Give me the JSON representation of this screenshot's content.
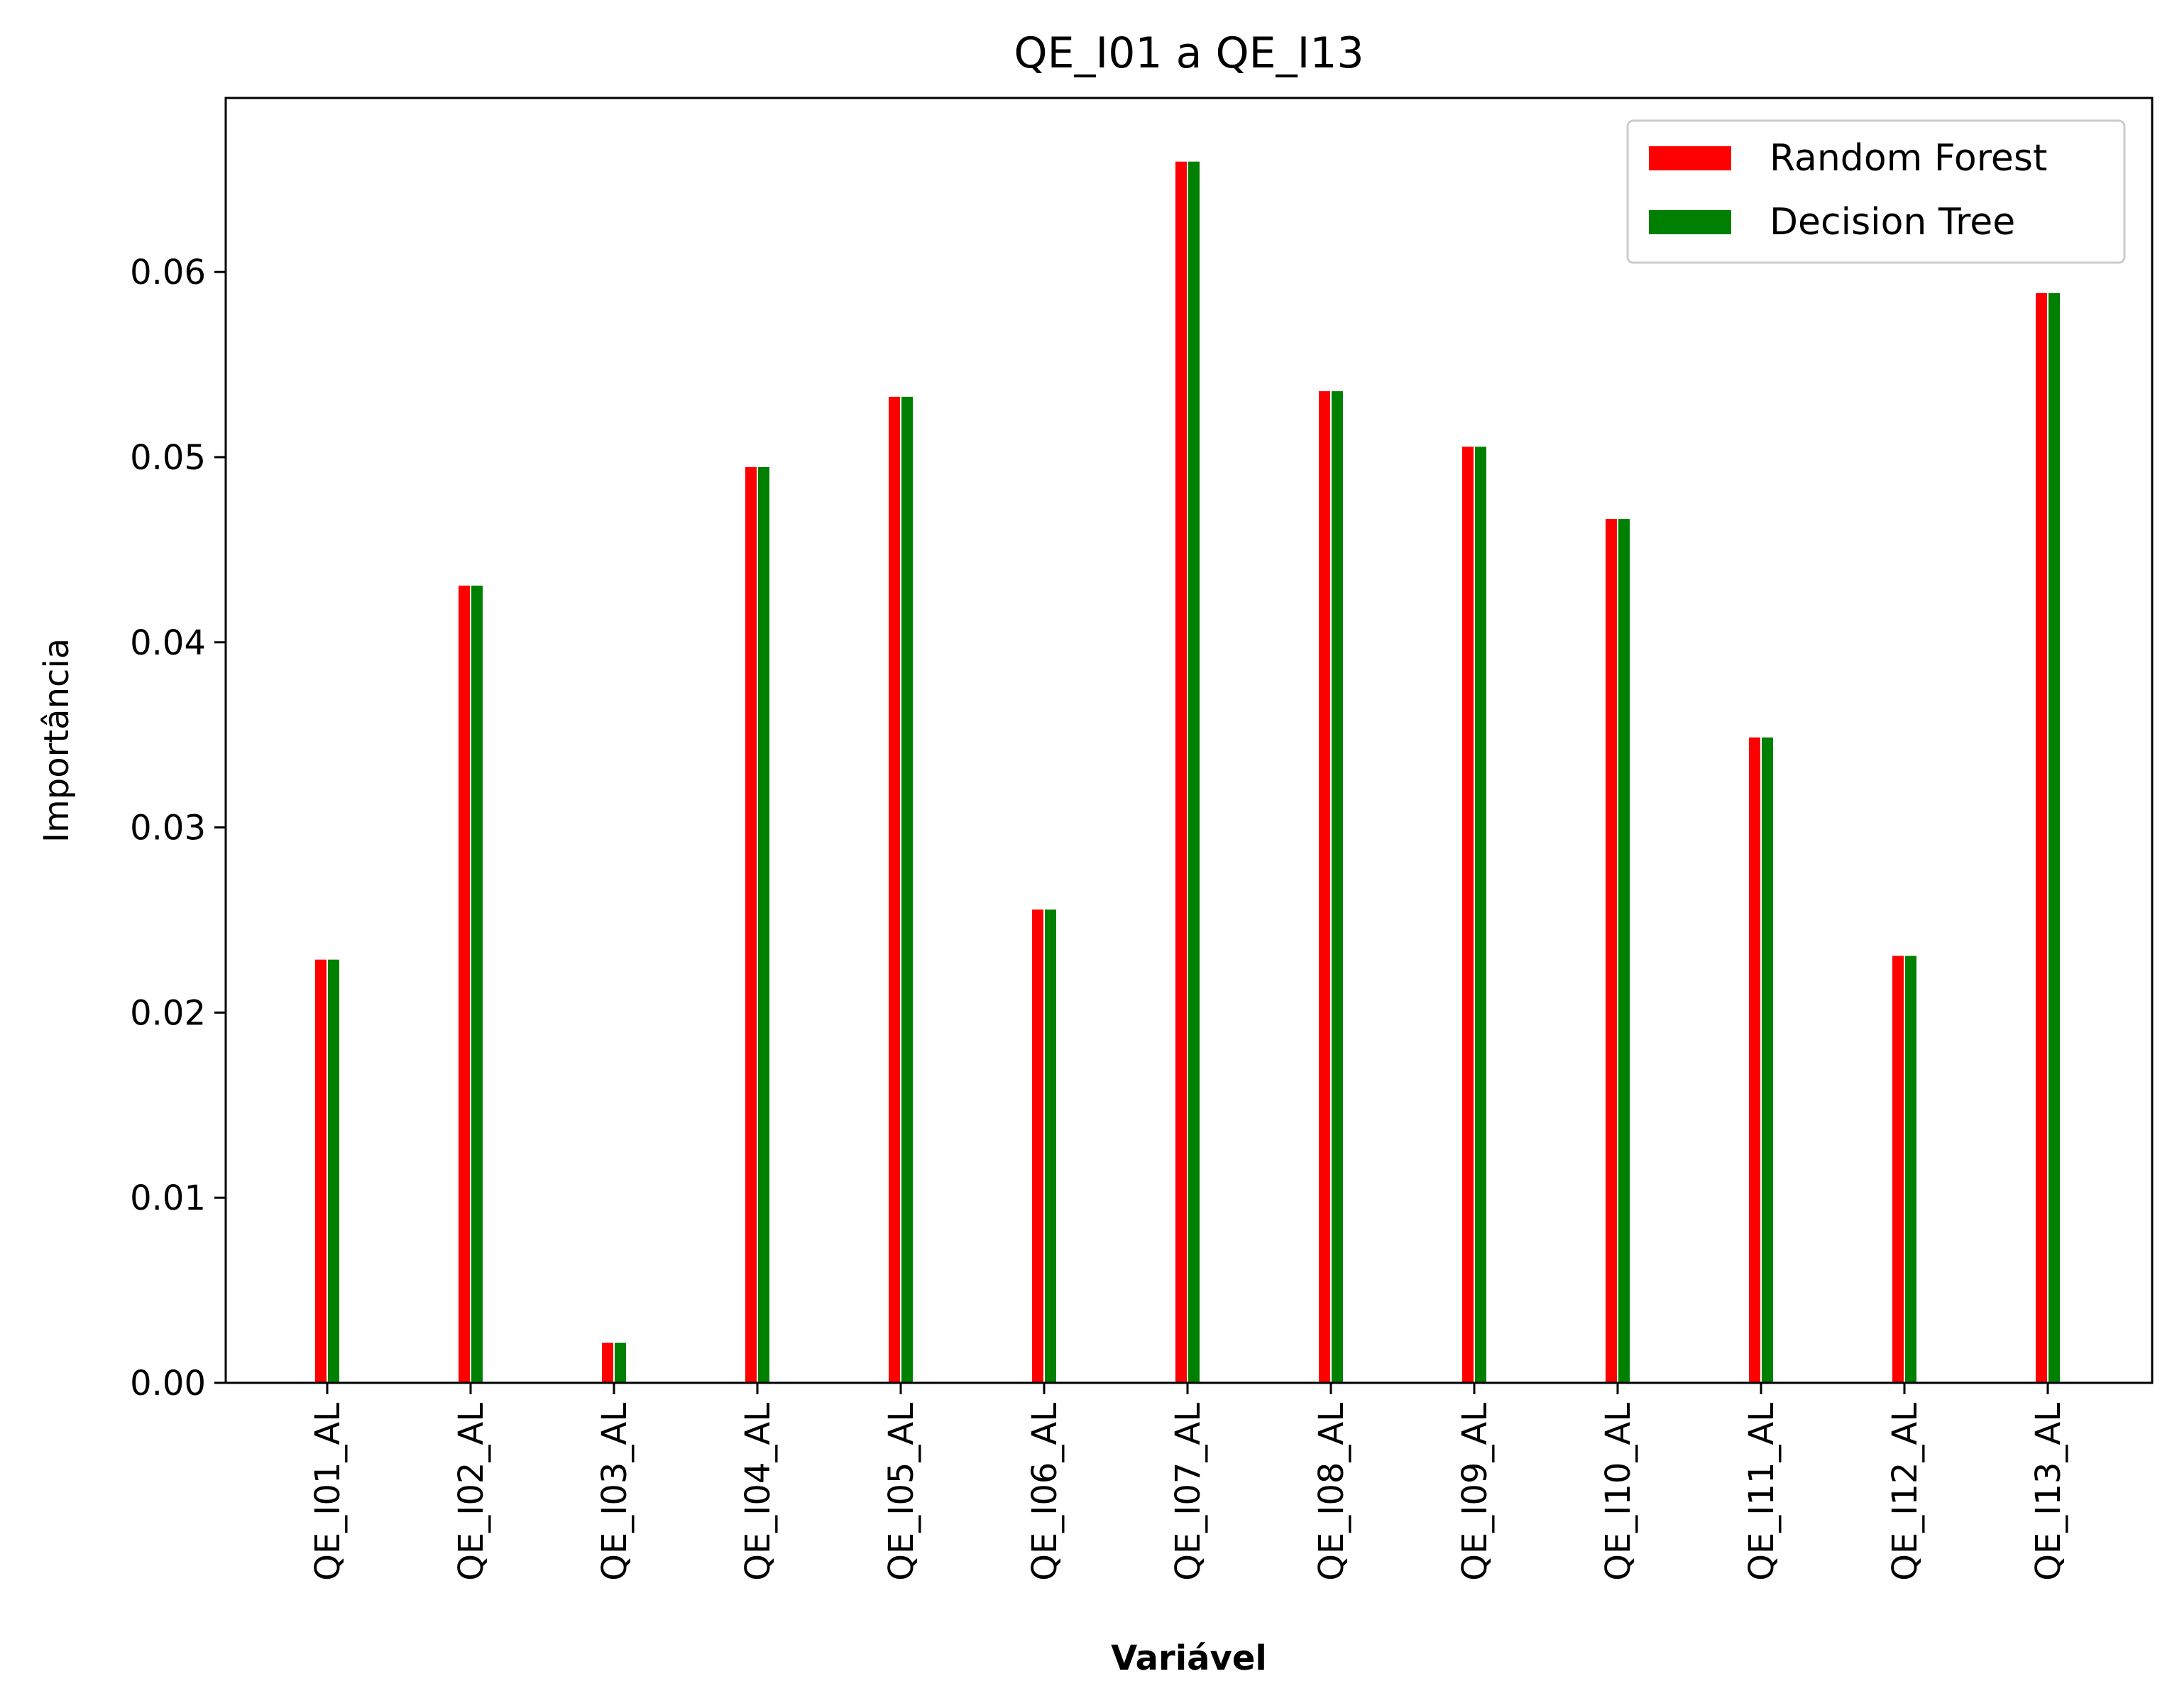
{
  "chart_data": {
    "type": "bar",
    "title": "QE_I01 a QE_I13",
    "xlabel": "Variável",
    "ylabel": "Importância",
    "categories": [
      "QE_I01_AL",
      "QE_I02_AL",
      "QE_I03_AL",
      "QE_I04_AL",
      "QE_I05_AL",
      "QE_I06_AL",
      "QE_I07_AL",
      "QE_I08_AL",
      "QE_I09_AL",
      "QE_I10_AL",
      "QE_I11_AL",
      "QE_I12_AL",
      "QE_I13_AL"
    ],
    "series": [
      {
        "name": "Random Forest",
        "color": "#ff0000",
        "values": [
          0.0229,
          0.0431,
          0.0022,
          0.0495,
          0.0533,
          0.0256,
          0.066,
          0.0536,
          0.0506,
          0.0467,
          0.0349,
          0.0231,
          0.0589
        ]
      },
      {
        "name": "Decision Tree",
        "color": "#008000",
        "values": [
          0.0229,
          0.0431,
          0.0022,
          0.0495,
          0.0533,
          0.0256,
          0.066,
          0.0536,
          0.0506,
          0.0467,
          0.0349,
          0.0231,
          0.0589
        ]
      }
    ],
    "ylim": [
      0,
      0.0694
    ],
    "yticks": [
      0.0,
      0.01,
      0.02,
      0.03,
      0.04,
      0.05,
      0.06
    ],
    "ytick_labels": [
      "0.00",
      "0.01",
      "0.02",
      "0.03",
      "0.04",
      "0.05",
      "0.06"
    ],
    "grid": false,
    "legend_position": "top-right"
  }
}
